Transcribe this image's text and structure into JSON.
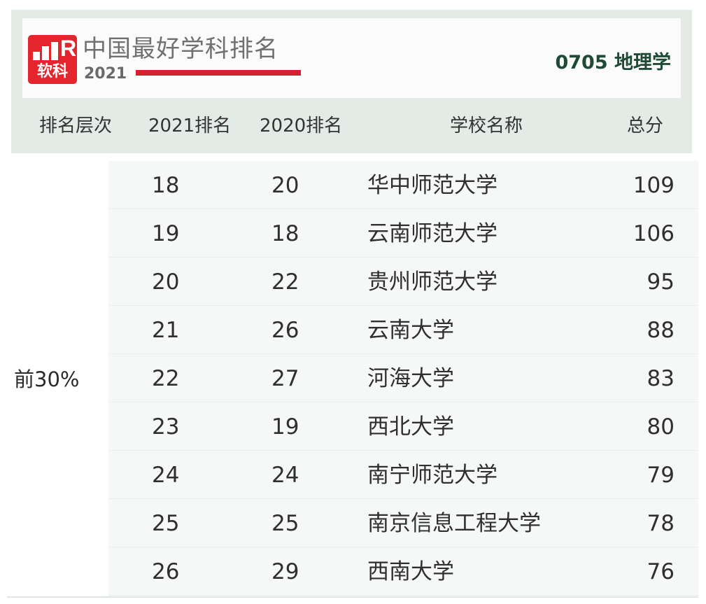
{
  "header": {
    "logo_text": "软科",
    "logo_letter": "R",
    "title": "中国最好学科排名",
    "year": "2021",
    "subject": "0705 地理学",
    "brand_color": "#e4252e"
  },
  "columns": {
    "level": "排名层次",
    "rank_2021": "2021排名",
    "rank_2020": "2020排名",
    "school": "学校名称",
    "score": "总分"
  },
  "level_label": "前30%",
  "rows": [
    {
      "rank_2021": "18",
      "rank_2020": "20",
      "school": "华中师范大学",
      "score": "109"
    },
    {
      "rank_2021": "19",
      "rank_2020": "18",
      "school": "云南师范大学",
      "score": "106"
    },
    {
      "rank_2021": "20",
      "rank_2020": "22",
      "school": "贵州师范大学",
      "score": "95"
    },
    {
      "rank_2021": "21",
      "rank_2020": "26",
      "school": "云南大学",
      "score": "88"
    },
    {
      "rank_2021": "22",
      "rank_2020": "27",
      "school": "河海大学",
      "score": "83"
    },
    {
      "rank_2021": "23",
      "rank_2020": "19",
      "school": "西北大学",
      "score": "80"
    },
    {
      "rank_2021": "24",
      "rank_2020": "24",
      "school": "南宁师范大学",
      "score": "79"
    },
    {
      "rank_2021": "25",
      "rank_2020": "25",
      "school": "南京信息工程大学",
      "score": "78"
    },
    {
      "rank_2021": "26",
      "rank_2020": "29",
      "school": "西南大学",
      "score": "76"
    }
  ]
}
